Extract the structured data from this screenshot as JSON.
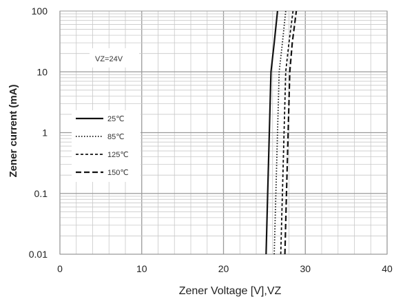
{
  "chart_data": {
    "type": "line",
    "title": "",
    "xlabel": "Zener Voltage [V],VZ",
    "ylabel": "Zener current (mA)",
    "xlim": [
      0,
      40
    ],
    "ylim": [
      0.01,
      100
    ],
    "yscale": "log",
    "xticks": [
      "0",
      "10",
      "20",
      "30",
      "40"
    ],
    "yticks": [
      "0.01",
      "0.1",
      "1",
      "10",
      "100"
    ],
    "grid": true,
    "legend_position": "left",
    "annotation": "VZ=24V",
    "series": [
      {
        "name": "25℃",
        "style": "solid",
        "points": [
          [
            25.2,
            0.01
          ],
          [
            25.4,
            0.1
          ],
          [
            25.6,
            1
          ],
          [
            25.8,
            10
          ],
          [
            26.2,
            30
          ],
          [
            26.6,
            100
          ]
        ]
      },
      {
        "name": "85℃",
        "style": "dotted",
        "points": [
          [
            26.2,
            0.01
          ],
          [
            26.4,
            0.1
          ],
          [
            26.6,
            1
          ],
          [
            26.8,
            10
          ],
          [
            27.2,
            30
          ],
          [
            27.6,
            100
          ]
        ]
      },
      {
        "name": "125℃",
        "style": "dashed",
        "points": [
          [
            27.0,
            0.01
          ],
          [
            27.2,
            0.1
          ],
          [
            27.4,
            1
          ],
          [
            27.6,
            10
          ],
          [
            28.0,
            30
          ],
          [
            28.5,
            100
          ]
        ]
      },
      {
        "name": "150℃",
        "style": "longdash",
        "points": [
          [
            27.5,
            0.01
          ],
          [
            27.7,
            0.1
          ],
          [
            27.9,
            1
          ],
          [
            28.1,
            10
          ],
          [
            28.4,
            30
          ],
          [
            28.9,
            100
          ]
        ]
      }
    ]
  }
}
